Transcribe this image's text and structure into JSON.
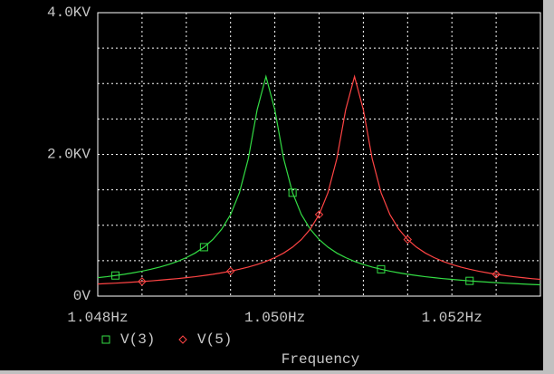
{
  "chart_data": {
    "type": "line",
    "xlabel": "Frequency",
    "x": [
      1.048,
      1.0481,
      1.0482,
      1.0483,
      1.0484,
      1.0485,
      1.0486,
      1.0487,
      1.0488,
      1.0489,
      1.049,
      1.0491,
      1.0492,
      1.0493,
      1.0494,
      1.0495,
      1.0496,
      1.0497,
      1.0498,
      1.0499,
      1.05,
      1.0501,
      1.0502,
      1.0503,
      1.0504,
      1.0505,
      1.0506,
      1.0507,
      1.0508,
      1.0509,
      1.051,
      1.0511,
      1.0512,
      1.0513,
      1.0514,
      1.0515,
      1.0516,
      1.0517,
      1.0518,
      1.0519,
      1.052,
      1.0521,
      1.0522,
      1.0523,
      1.0524,
      1.0525,
      1.0526,
      1.0527,
      1.0528,
      1.0529,
      1.053
    ],
    "series": [
      {
        "name": "V(3)",
        "color": "#33dd44",
        "marker": "square",
        "values": [
          260,
          274,
          291,
          308,
          329,
          352,
          379,
          410,
          446,
          490,
          543,
          608,
          691,
          799,
          945,
          1151,
          1459,
          1937,
          2629,
          3100,
          2629,
          1937,
          1459,
          1151,
          945,
          799,
          691,
          608,
          543,
          490,
          446,
          410,
          379,
          352,
          329,
          308,
          291,
          274,
          260,
          247,
          236,
          225,
          215,
          206,
          198,
          190,
          183,
          177,
          171,
          165,
          160
        ]
      },
      {
        "name": "V(5)",
        "color": "#ff4444",
        "marker": "diamond",
        "values": [
          171,
          177,
          183,
          190,
          198,
          206,
          215,
          225,
          236,
          247,
          260,
          274,
          291,
          308,
          329,
          352,
          379,
          410,
          446,
          490,
          543,
          608,
          691,
          799,
          945,
          1151,
          1459,
          1937,
          2629,
          3100,
          2629,
          1937,
          1459,
          1151,
          945,
          799,
          691,
          608,
          543,
          490,
          446,
          410,
          379,
          352,
          329,
          308,
          291,
          274,
          260,
          247,
          236
        ]
      }
    ],
    "xlim": [
      1.048,
      1.053
    ],
    "xticks": [
      {
        "value": 1.048,
        "label": "1.048Hz"
      },
      {
        "value": 1.05,
        "label": "1.050Hz"
      },
      {
        "value": 1.052,
        "label": "1.052Hz"
      }
    ],
    "ylim": [
      0,
      4000
    ],
    "yticks": [
      {
        "value": 0,
        "label": "0V"
      },
      {
        "value": 2000,
        "label": "2.0KV"
      },
      {
        "value": 4000,
        "label": "4.0KV"
      }
    ],
    "grid": true
  }
}
